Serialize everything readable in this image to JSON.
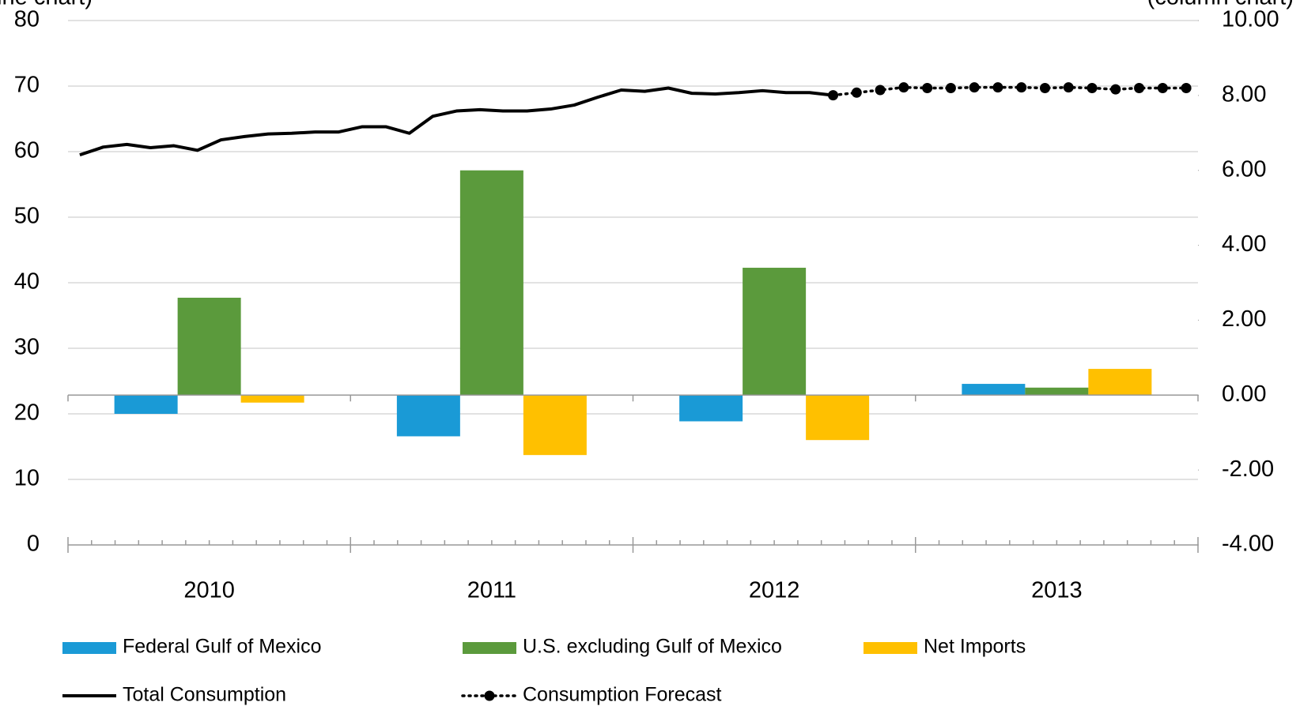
{
  "chart_data": [
    {
      "type": "line",
      "y_label": "(line chart)",
      "categories": [
        null,
        null,
        null,
        null,
        null,
        null,
        null,
        null,
        null,
        null,
        null,
        null,
        null,
        null,
        null,
        null,
        null,
        null,
        null,
        null,
        null,
        null,
        null,
        null,
        null,
        null,
        null,
        null,
        null,
        null,
        null,
        null,
        null,
        null,
        null,
        null,
        null,
        null,
        null,
        null,
        null,
        null,
        null,
        null,
        null,
        null,
        null,
        null
      ],
      "ylim": [
        0,
        80
      ],
      "yticks": [
        0,
        10,
        20,
        30,
        40,
        50,
        60,
        70,
        80
      ],
      "grid": true,
      "series": [
        {
          "name": "Total Consumption",
          "color": "#000000",
          "dash": "solid",
          "markers": false,
          "values": [
            59.5,
            60.7,
            61.1,
            60.6,
            60.9,
            60.2,
            61.8,
            62.3,
            62.7,
            62.8,
            63.0,
            63.0,
            63.8,
            63.8,
            62.8,
            65.4,
            66.2,
            66.4,
            66.2,
            66.2,
            66.5,
            67.1,
            68.3,
            69.4,
            69.2,
            69.7,
            68.9,
            68.8,
            69.0,
            69.3,
            69.0,
            69.0,
            68.6,
            null,
            null,
            null,
            null,
            null,
            null,
            null,
            null,
            null,
            null,
            null,
            null,
            null,
            null,
            null
          ]
        },
        {
          "name": "Consumption Forecast",
          "color": "#000000",
          "dash": "dotted",
          "markers": true,
          "values": [
            null,
            null,
            null,
            null,
            null,
            null,
            null,
            null,
            null,
            null,
            null,
            null,
            null,
            null,
            null,
            null,
            null,
            null,
            null,
            null,
            null,
            null,
            null,
            null,
            null,
            null,
            null,
            null,
            null,
            null,
            null,
            null,
            68.6,
            69.0,
            69.4,
            69.8,
            69.7,
            69.7,
            69.8,
            69.8,
            69.8,
            69.7,
            69.8,
            69.7,
            69.5,
            69.7,
            69.7,
            69.7
          ]
        }
      ]
    },
    {
      "type": "bar",
      "y2_label": "(column chart)",
      "categories": [
        "2010",
        "2011",
        "2012",
        "2013"
      ],
      "y2lim": [
        -4,
        10
      ],
      "y2ticks": [
        {
          "value": -4,
          "label": "-4.00"
        },
        {
          "value": -2,
          "label": "-2.00"
        },
        {
          "value": 0,
          "label": "0.00"
        },
        {
          "value": 2,
          "label": "2.00"
        },
        {
          "value": 4,
          "label": "4.00"
        },
        {
          "value": 6,
          "label": "6.00"
        },
        {
          "value": 8,
          "label": "8.00"
        },
        {
          "value": 10,
          "label": "10.00"
        }
      ],
      "series": [
        {
          "name": "Federal Gulf of Mexico",
          "color": "#1a9ad6",
          "axis": "y2",
          "values": [
            -0.5,
            -1.1,
            -0.7,
            0.3
          ]
        },
        {
          "name": "U.S. excluding Gulf of Mexico",
          "color": "#5b9a3c",
          "axis": "y2",
          "values": [
            2.6,
            6.0,
            3.4,
            0.2
          ]
        },
        {
          "name": "Net Imports",
          "color": "#ffc000",
          "axis": "y2",
          "values": [
            -0.2,
            -1.6,
            -1.2,
            0.7
          ]
        }
      ]
    }
  ]
}
